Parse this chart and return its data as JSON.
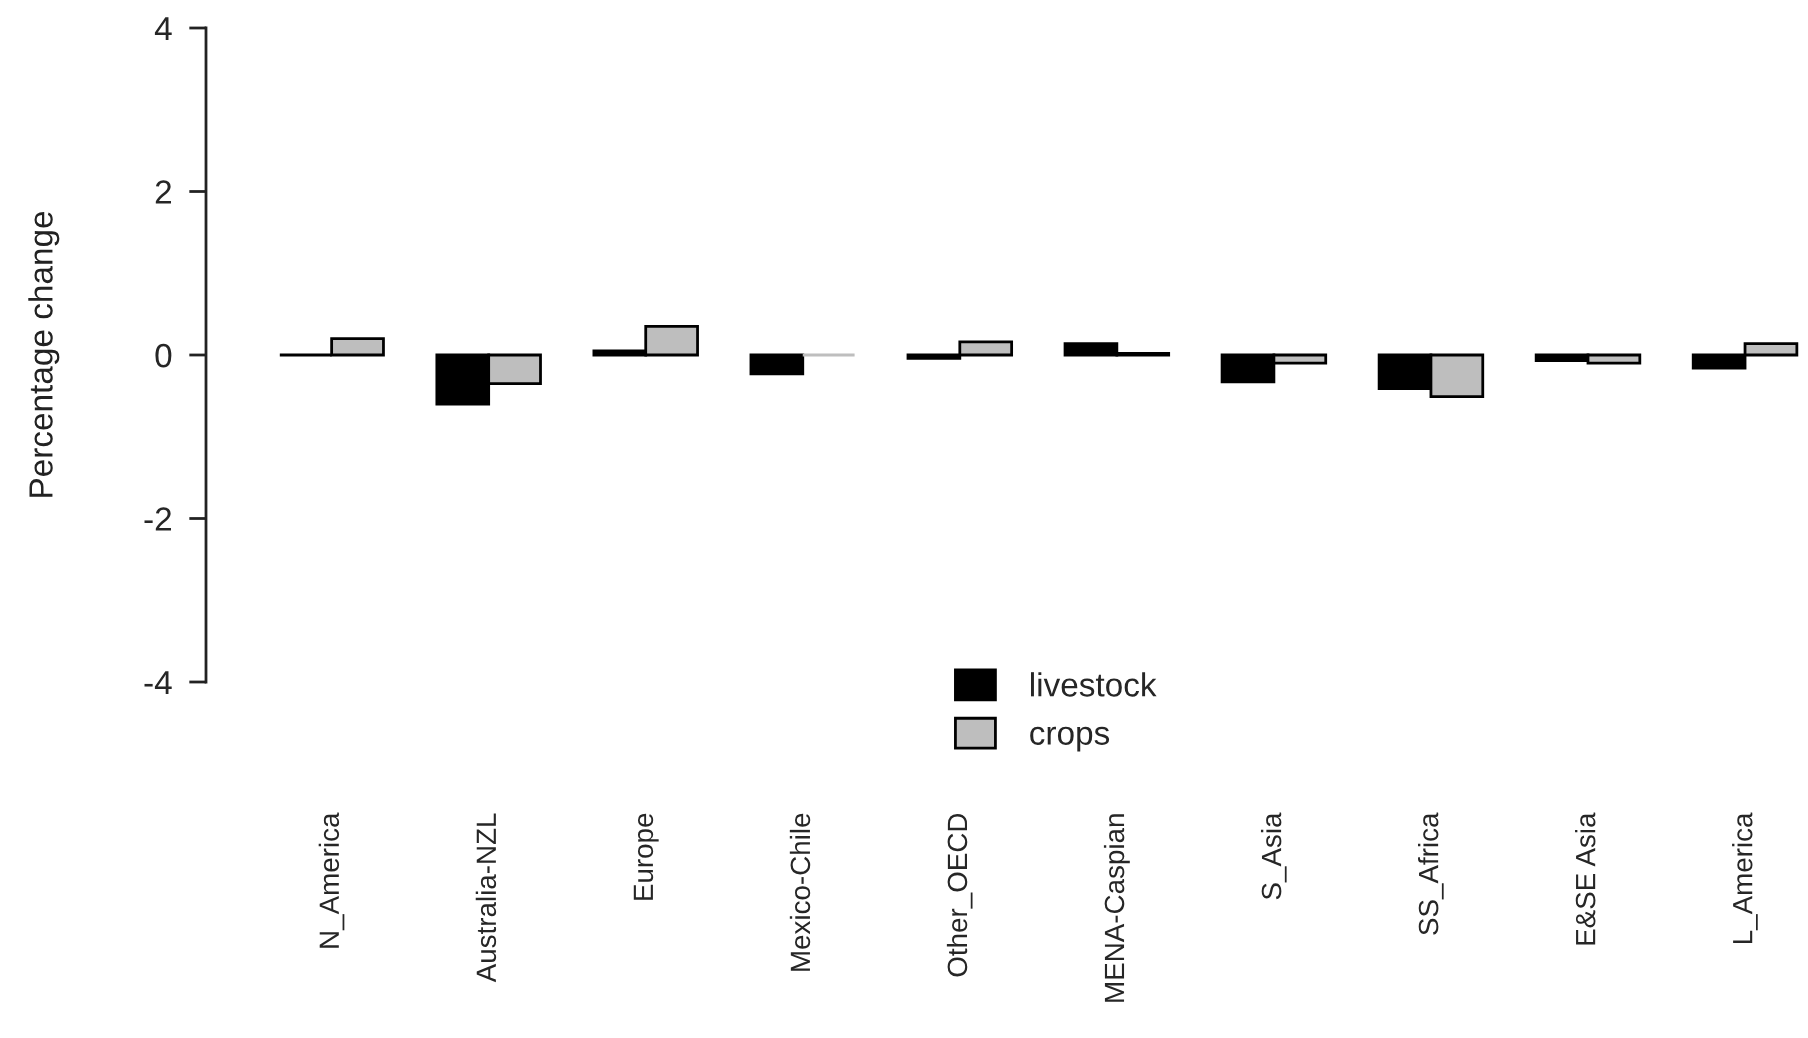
{
  "chart_data": {
    "type": "bar",
    "ylabel": "Percentage change",
    "categories": [
      "N_America",
      "Australia-NZL",
      "Europe",
      "Mexico-Chile",
      "Other_OECD",
      "MENA-Caspian",
      "S_Asia",
      "SS_Africa",
      "E&SE Asia",
      "L_America"
    ],
    "series": [
      {
        "name": "livestock",
        "color": "#000000",
        "values": [
          0,
          -0.6,
          0.05,
          -0.23,
          -0.04,
          0.14,
          -0.33,
          -0.41,
          -0.07,
          -0.16
        ]
      },
      {
        "name": "crops",
        "color": "#bebebe",
        "values": [
          0.2,
          -0.35,
          0.35,
          0,
          0.16,
          0.02,
          -0.1,
          -0.51,
          -0.1,
          0.14
        ]
      }
    ],
    "ylim": [
      -4,
      4
    ],
    "yticks": [
      -4,
      -2,
      0,
      2,
      4
    ],
    "legend": "bottom"
  }
}
